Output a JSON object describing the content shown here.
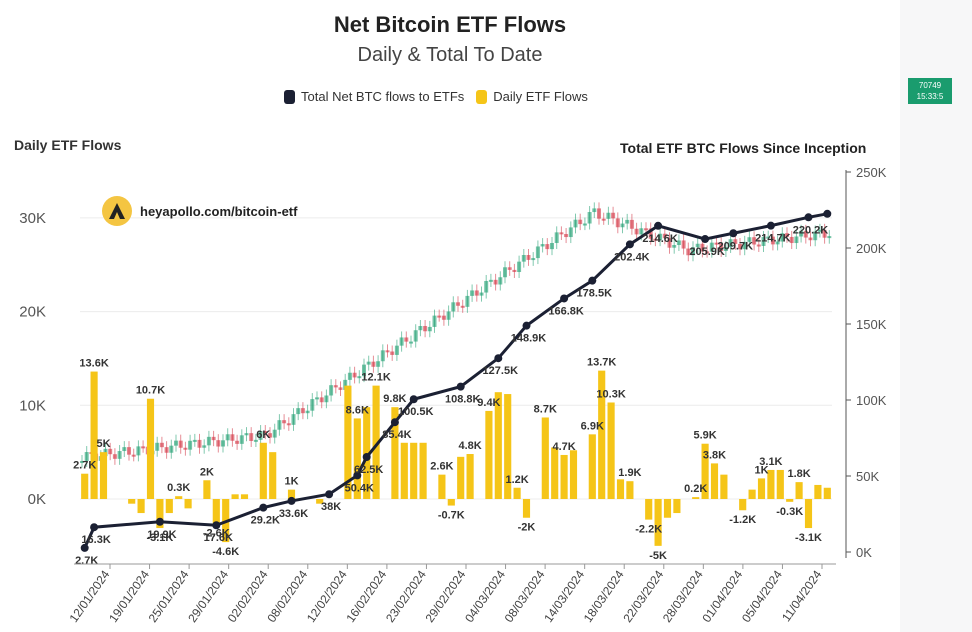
{
  "price_badge": {
    "value": "70749",
    "sub": "15:33:5"
  },
  "brand": {
    "text": "heyapollo.com/bitcoin-etf",
    "icon": "apollo-logo-icon"
  },
  "chart_data": {
    "type": "bar",
    "title": "Net Bitcoin ETF Flows",
    "subtitle": "Daily & Total To Date",
    "left_axis_title": "Daily ETF Flows",
    "right_axis_title": "Total ETF BTC Flows Since Inception",
    "legend": [
      {
        "name": "Total Net BTC flows to ETFs",
        "color": "#1b2033"
      },
      {
        "name": "Daily ETF Flows",
        "color": "#f5c518"
      }
    ],
    "left_ticks": [
      "0K",
      "10K",
      "20K",
      "30K"
    ],
    "left_tick_values": [
      0,
      10000,
      20000,
      30000
    ],
    "ylim_left": [
      -7000,
      35000
    ],
    "right_ticks": [
      "0K",
      "50K",
      "100K",
      "150K",
      "200K",
      "250K"
    ],
    "right_tick_values": [
      0,
      50000,
      100000,
      150000,
      200000,
      250000
    ],
    "ylim_right": [
      0,
      250000
    ],
    "x_ticks": [
      "12/01/2024",
      "19/01/2024",
      "25/01/2024",
      "29/01/2024",
      "02/02/2024",
      "08/02/2024",
      "12/02/2024",
      "16/02/2024",
      "23/02/2024",
      "29/02/2024",
      "04/03/2024",
      "08/03/2024",
      "14/03/2024",
      "18/03/2024",
      "22/03/2024",
      "28/03/2024",
      "01/04/2024",
      "05/04/2024",
      "11/04/2024"
    ],
    "daily": [
      2700,
      13600,
      5000,
      0,
      0,
      -500,
      -1500,
      10700,
      -3100,
      -1500,
      300,
      -1000,
      0,
      2000,
      -2600,
      -4600,
      500,
      500,
      0,
      6000,
      5000,
      0,
      1000,
      0,
      0,
      -500,
      0,
      0,
      12100,
      8600,
      9800,
      12100,
      0,
      9800,
      6000,
      6000,
      6000,
      0,
      2600,
      -700,
      4500,
      4800,
      0,
      9400,
      11400,
      11200,
      1200,
      -2000,
      0,
      8700,
      5500,
      4700,
      5200,
      0,
      6900,
      13700,
      10300,
      2100,
      1900,
      0,
      -2200,
      -5000,
      -2000,
      -1500,
      0,
      200,
      5900,
      3800,
      2600,
      0,
      -1200,
      1000,
      2200,
      3100,
      3100,
      -300,
      1800,
      -3100,
      1500,
      1200
    ],
    "daily_labels": [
      {
        "i": 0,
        "text": "2.7K"
      },
      {
        "i": 1,
        "text": "13.6K"
      },
      {
        "i": 2,
        "text": "5K"
      },
      {
        "i": 7,
        "text": "10.7K"
      },
      {
        "i": 8,
        "text": "-3.1K"
      },
      {
        "i": 10,
        "text": "0.3K"
      },
      {
        "i": 13,
        "text": "2K"
      },
      {
        "i": 14,
        "text": "-2.6K"
      },
      {
        "i": 15,
        "text": "-4.6K"
      },
      {
        "i": 19,
        "text": "6K"
      },
      {
        "i": 22,
        "text": "1K"
      },
      {
        "i": 29,
        "text": "8.6K"
      },
      {
        "i": 31,
        "text": "12.1K"
      },
      {
        "i": 33,
        "text": "9.8K"
      },
      {
        "i": 38,
        "text": "2.6K"
      },
      {
        "i": 39,
        "text": "-0.7K"
      },
      {
        "i": 41,
        "text": "4.8K"
      },
      {
        "i": 43,
        "text": "9.4K"
      },
      {
        "i": 46,
        "text": "1.2K"
      },
      {
        "i": 47,
        "text": "-2K"
      },
      {
        "i": 49,
        "text": "8.7K"
      },
      {
        "i": 51,
        "text": "4.7K"
      },
      {
        "i": 54,
        "text": "6.9K"
      },
      {
        "i": 55,
        "text": "13.7K"
      },
      {
        "i": 56,
        "text": "10.3K"
      },
      {
        "i": 58,
        "text": "1.9K"
      },
      {
        "i": 60,
        "text": "-2.2K"
      },
      {
        "i": 61,
        "text": "-5K"
      },
      {
        "i": 65,
        "text": "0.2K"
      },
      {
        "i": 66,
        "text": "5.9K"
      },
      {
        "i": 67,
        "text": "3.8K"
      },
      {
        "i": 70,
        "text": "-1.2K"
      },
      {
        "i": 72,
        "text": "1K"
      },
      {
        "i": 73,
        "text": "3.1K"
      },
      {
        "i": 75,
        "text": "-0.3K"
      },
      {
        "i": 76,
        "text": "1.8K"
      },
      {
        "i": 77,
        "text": "-3.1K"
      }
    ],
    "cumulative": [
      {
        "i": 0,
        "v": 2700,
        "label": "2.7K"
      },
      {
        "i": 1,
        "v": 16300,
        "label": "16.3K"
      },
      {
        "i": 8,
        "v": 19900,
        "label": "19.9K"
      },
      {
        "i": 14,
        "v": 17600,
        "label": "17.6K"
      },
      {
        "i": 19,
        "v": 29200,
        "label": "29.2K"
      },
      {
        "i": 22,
        "v": 33600,
        "label": "33.6K"
      },
      {
        "i": 26,
        "v": 38000,
        "label": "38K"
      },
      {
        "i": 29,
        "v": 50400,
        "label": "50.4K"
      },
      {
        "i": 30,
        "v": 62500,
        "label": "62.5K"
      },
      {
        "i": 33,
        "v": 85400,
        "label": "85.4K"
      },
      {
        "i": 35,
        "v": 100500,
        "label": "100.5K"
      },
      {
        "i": 40,
        "v": 108800,
        "label": "108.8K"
      },
      {
        "i": 44,
        "v": 127500,
        "label": "127.5K"
      },
      {
        "i": 47,
        "v": 148900,
        "label": "148.9K"
      },
      {
        "i": 51,
        "v": 166800,
        "label": "166.8K"
      },
      {
        "i": 54,
        "v": 178500,
        "label": "178.5K"
      },
      {
        "i": 58,
        "v": 202400,
        "label": "202.4K"
      },
      {
        "i": 61,
        "v": 214600,
        "label": "214.6K"
      },
      {
        "i": 66,
        "v": 205900,
        "label": "205.9K"
      },
      {
        "i": 69,
        "v": 209700,
        "label": "209.7K"
      },
      {
        "i": 73,
        "v": 214700,
        "label": "214.7K"
      },
      {
        "i": 77,
        "v": 220200,
        "label": "220.2K"
      },
      {
        "i": 79,
        "v": 222500,
        "label": ""
      }
    ]
  },
  "colors": {
    "bar": "#f5c518",
    "line": "#1b2033",
    "candle_up": "#1a9c6e",
    "candle_down": "#d2303f"
  }
}
